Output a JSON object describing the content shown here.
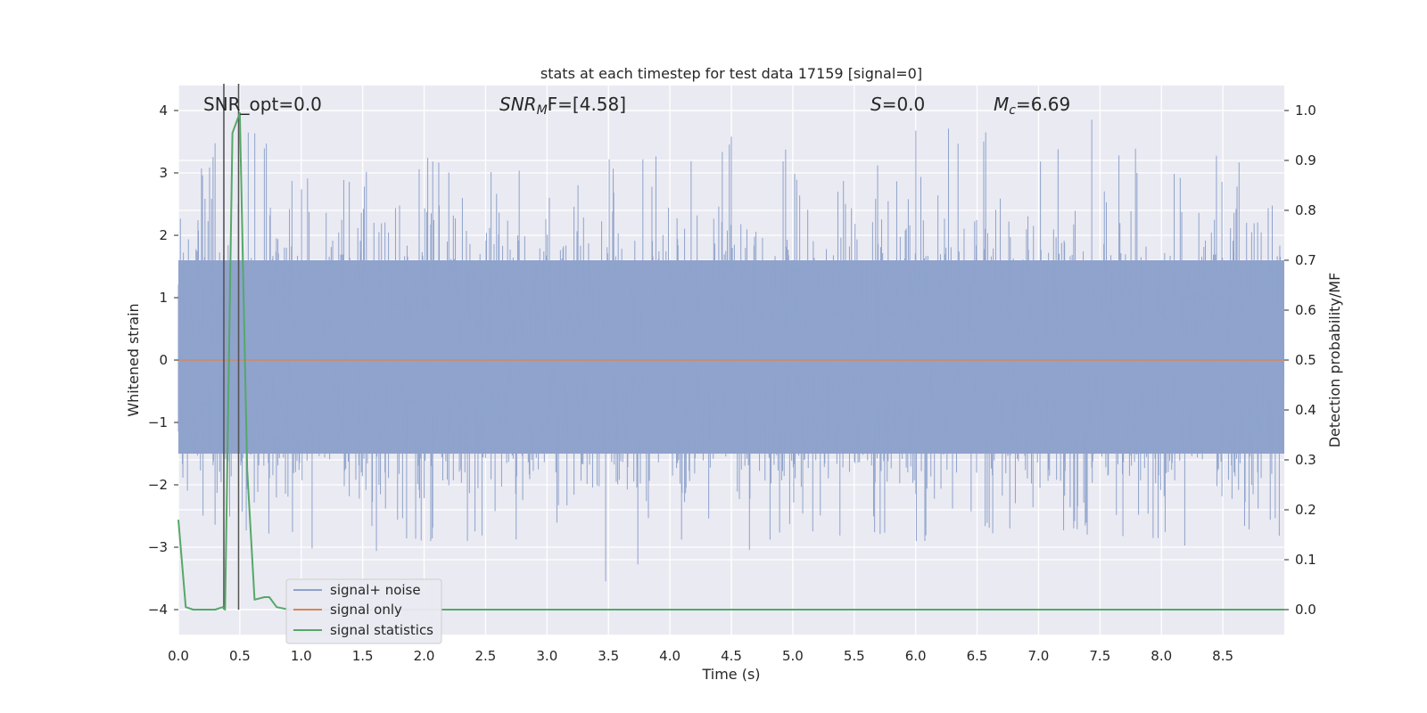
{
  "chart_data": {
    "type": "line",
    "title": "stats at each timestep for test data 17159 [signal=0]",
    "xlabel": "Time (s)",
    "ylabel_left": "Whitened strain",
    "ylabel_right": "Detection probability/MF",
    "xlim": [
      0,
      9.0
    ],
    "ylim_left": [
      -4.4,
      4.4
    ],
    "ylim_right": [
      -0.05,
      1.05
    ],
    "x_ticks": [
      0.0,
      0.5,
      1.0,
      1.5,
      2.0,
      2.5,
      3.0,
      3.5,
      4.0,
      4.5,
      5.0,
      5.5,
      6.0,
      6.5,
      7.0,
      7.5,
      8.0,
      8.5
    ],
    "x_tick_labels": [
      "0.0",
      "0.5",
      "1.0",
      "1.5",
      "2.0",
      "2.5",
      "3.0",
      "3.5",
      "4.0",
      "4.5",
      "5.0",
      "5.5",
      "6.0",
      "6.5",
      "7.0",
      "7.5",
      "8.0",
      "8.5"
    ],
    "y_left_ticks": [
      -4,
      -3,
      -2,
      -1,
      0,
      1,
      2,
      3,
      4
    ],
    "y_left_tick_labels": [
      "−4",
      "−3",
      "−2",
      "−1",
      "0",
      "1",
      "2",
      "3",
      "4"
    ],
    "y_right_ticks": [
      0.0,
      0.1,
      0.2,
      0.3,
      0.4,
      0.5,
      0.6,
      0.7,
      0.8,
      0.9,
      1.0
    ],
    "y_right_tick_labels": [
      "0.0",
      "0.1",
      "0.2",
      "0.3",
      "0.4",
      "0.5",
      "0.6",
      "0.7",
      "0.8",
      "0.9",
      "1.0"
    ],
    "grid": true,
    "legend_location": "lower-left",
    "annotations": {
      "snr_opt": "SNR_opt=0.0",
      "snr_mf_main": "SNR",
      "snr_mf_sub": "M",
      "snr_mf_rest": "F=[4.58]",
      "s_main": "S",
      "s_rest": "=0.0",
      "mc_main": "M",
      "mc_sub": "c",
      "mc_rest": "=6.69"
    },
    "vertical_markers_x": [
      0.37,
      0.49
    ],
    "series": [
      {
        "name": "signal+ noise",
        "color": "#8fa3cc",
        "description_note": "dense whitened noise",
        "envelope": {
          "x": [
            0.0,
            0.5,
            1.0,
            1.5,
            2.0,
            2.5,
            3.0,
            3.5,
            4.0,
            4.5,
            5.0,
            5.5,
            6.0,
            6.5,
            7.0,
            7.5,
            8.0,
            8.5,
            9.0
          ],
          "peak_max": [
            2.7,
            4.0,
            2.9,
            3.0,
            3.3,
            3.2,
            3.2,
            3.3,
            3.3,
            3.6,
            3.4,
            3.6,
            3.9,
            3.8,
            3.3,
            4.0,
            3.1,
            3.4,
            2.7
          ],
          "peak_min": [
            -2.5,
            -2.8,
            -3.2,
            -3.4,
            -2.9,
            -2.9,
            -3.0,
            -3.7,
            -3.0,
            -3.1,
            -2.9,
            -2.9,
            -2.9,
            -2.9,
            -2.8,
            -2.8,
            -3.3,
            -3.0,
            -2.8
          ]
        }
      },
      {
        "name": "signal only",
        "color": "#dd8452",
        "x": [
          0.0,
          9.0
        ],
        "y": [
          0.0,
          0.0
        ]
      },
      {
        "name": "signal statistics",
        "color": "#55a868",
        "axis": "right",
        "x": [
          0.0,
          0.06,
          0.12,
          0.2,
          0.3,
          0.36,
          0.38,
          0.44,
          0.5,
          0.56,
          0.62,
          0.7,
          0.74,
          0.8,
          0.9,
          1.5,
          2.0,
          9.0
        ],
        "y": [
          0.18,
          0.005,
          0.0,
          0.0,
          0.0,
          0.005,
          0.0,
          0.955,
          0.995,
          0.28,
          0.02,
          0.025,
          0.025,
          0.005,
          0.0,
          0.0,
          0.0,
          0.0
        ]
      }
    ]
  }
}
